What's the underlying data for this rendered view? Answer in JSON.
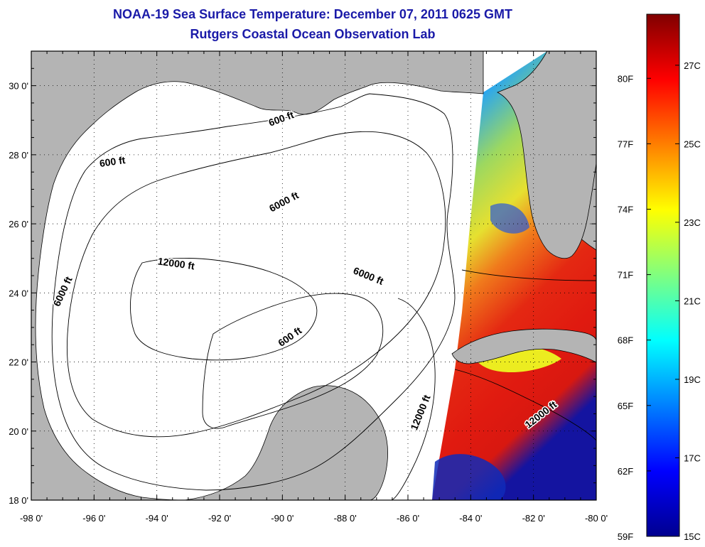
{
  "title": "NOAA-19 Sea Surface Temperature:  December 07, 2011 0625 GMT",
  "subtitle": "Rutgers Coastal Ocean Observation Lab",
  "map": {
    "lon_range": [
      -98,
      -80
    ],
    "lat_range": [
      18,
      31
    ],
    "lon_ticks": [
      {
        "value": -98,
        "label": "-98 0'"
      },
      {
        "value": -96,
        "label": "-96 0'"
      },
      {
        "value": -94,
        "label": "-94 0'"
      },
      {
        "value": -92,
        "label": "-92 0'"
      },
      {
        "value": -90,
        "label": "-90 0'"
      },
      {
        "value": -88,
        "label": "-88 0'"
      },
      {
        "value": -86,
        "label": "-86 0'"
      },
      {
        "value": -84,
        "label": "-84 0'"
      },
      {
        "value": -82,
        "label": "-82 0'"
      },
      {
        "value": -80,
        "label": "-80 0'"
      }
    ],
    "lat_ticks": [
      {
        "value": 18,
        "label": "18 0'"
      },
      {
        "value": 20,
        "label": "20 0'"
      },
      {
        "value": 22,
        "label": "22 0'"
      },
      {
        "value": 24,
        "label": "24 0'"
      },
      {
        "value": 26,
        "label": "26 0'"
      },
      {
        "value": 28,
        "label": "28 0'"
      },
      {
        "value": 30,
        "label": "30 0'"
      }
    ],
    "grid": "dotted",
    "land_color": "#b4b4b4",
    "water_color": "#ffffff",
    "contour_labels": [
      {
        "text": "600 ft",
        "lon": -90.0,
        "lat": 28.95,
        "rot": -20
      },
      {
        "text": "600 ft",
        "lon": -95.4,
        "lat": 27.7,
        "rot": -8
      },
      {
        "text": "6000 ft",
        "lon": -89.9,
        "lat": 26.55,
        "rot": -28
      },
      {
        "text": "12000 ft",
        "lon": -93.4,
        "lat": 24.75,
        "rot": 8
      },
      {
        "text": "6000 ft",
        "lon": -87.3,
        "lat": 24.4,
        "rot": 22
      },
      {
        "text": "6000 ft",
        "lon": -96.9,
        "lat": 24.0,
        "rot": -65
      },
      {
        "text": "600 ft",
        "lon": -89.7,
        "lat": 22.65,
        "rot": -35
      },
      {
        "text": "12000 ft",
        "lon": -85.5,
        "lat": 20.5,
        "rot": -68
      },
      {
        "text": "12000 ft",
        "lon": -81.7,
        "lat": 20.4,
        "rot": -38
      }
    ]
  },
  "colorbar": {
    "min_c": 15,
    "max_c": 28.3,
    "colormap": "jet",
    "f_ticks": [
      {
        "value": 80,
        "label": "80F"
      },
      {
        "value": 77,
        "label": "77F"
      },
      {
        "value": 74,
        "label": "74F"
      },
      {
        "value": 71,
        "label": "71F"
      },
      {
        "value": 68,
        "label": "68F"
      },
      {
        "value": 65,
        "label": "65F"
      },
      {
        "value": 62,
        "label": "62F"
      },
      {
        "value": 59,
        "label": "59F"
      }
    ],
    "c_ticks": [
      {
        "value": 27,
        "label": "27C"
      },
      {
        "value": 25,
        "label": "25C"
      },
      {
        "value": 23,
        "label": "23C"
      },
      {
        "value": 21,
        "label": "21C"
      },
      {
        "value": 19,
        "label": "19C"
      },
      {
        "value": 17,
        "label": "17C"
      },
      {
        "value": 15,
        "label": "15C"
      }
    ]
  }
}
